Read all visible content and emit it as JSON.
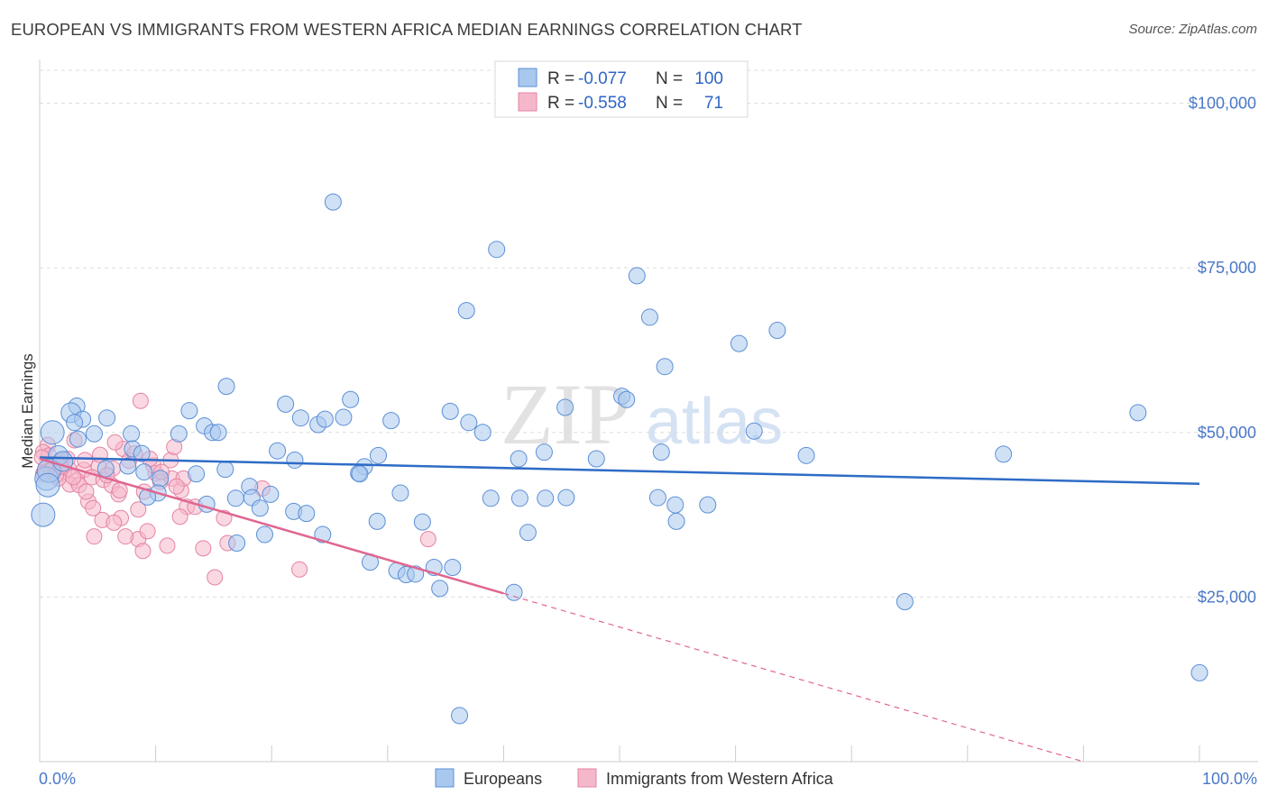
{
  "title": "EUROPEAN VS IMMIGRANTS FROM WESTERN AFRICA MEDIAN EARNINGS CORRELATION CHART",
  "source": "Source: ZipAtlas.com",
  "watermark": {
    "part1": "ZIP",
    "part2": "atlas"
  },
  "colors": {
    "blue_fill": "#a9c8ee",
    "blue_stroke": "#5b8fd6",
    "blue_line": "#2e6cc6",
    "pink_fill": "#f5b8ca",
    "pink_stroke": "#e583a3",
    "pink_line": "#e06690",
    "axis_text": "#4a78c8",
    "grid": "#dddddd"
  },
  "legend": {
    "rows": [
      {
        "r_label": "R =",
        "r_value": "-0.077",
        "n_label": "N =",
        "n_value": "100"
      },
      {
        "r_label": "R =",
        "r_value": "-0.558",
        "n_label": "N =",
        "n_value": "71"
      }
    ]
  },
  "chart_data": {
    "type": "scatter",
    "title": "EUROPEAN VS IMMIGRANTS FROM WESTERN AFRICA MEDIAN EARNINGS CORRELATION CHART",
    "xlabel": "",
    "ylabel": "Median Earnings",
    "xlim": [
      0,
      100
    ],
    "ylim": [
      0,
      105000
    ],
    "x_tick_labels": [
      "0.0%",
      "100.0%"
    ],
    "y_ticks": [
      25000,
      50000,
      75000,
      100000
    ],
    "y_tick_labels": [
      "$25,000",
      "$50,000",
      "$75,000",
      "$100,000"
    ],
    "grid": true,
    "series": [
      {
        "name": "Europeans",
        "r": -0.077,
        "n": 100,
        "trend": {
          "x": [
            0,
            100
          ],
          "y": [
            46200,
            42200
          ],
          "dashed_from": null
        },
        "points": [
          [
            25.3,
            85000
          ],
          [
            39.4,
            77800
          ],
          [
            36.8,
            68500
          ],
          [
            51.5,
            73800
          ],
          [
            52.6,
            67500
          ],
          [
            53.9,
            60000
          ],
          [
            60.3,
            63500
          ],
          [
            63.6,
            65500
          ],
          [
            16.1,
            57000
          ],
          [
            21.2,
            54300
          ],
          [
            26.8,
            55000
          ],
          [
            45.3,
            53800
          ],
          [
            50.2,
            55500
          ],
          [
            35.4,
            53200
          ],
          [
            94.7,
            53000
          ],
          [
            3.2,
            54000
          ],
          [
            2.7,
            53000
          ],
          [
            3.7,
            52000
          ],
          [
            5.8,
            52200
          ],
          [
            12.9,
            53300
          ],
          [
            22.5,
            52200
          ],
          [
            24.0,
            51200
          ],
          [
            24.6,
            52000
          ],
          [
            26.2,
            52300
          ],
          [
            30.3,
            51800
          ],
          [
            37.0,
            51500
          ],
          [
            14.2,
            51000
          ],
          [
            3.0,
            51500
          ],
          [
            1.1,
            50000
          ],
          [
            7.9,
            49800
          ],
          [
            12.0,
            49800
          ],
          [
            14.9,
            50000
          ],
          [
            15.4,
            50000
          ],
          [
            38.2,
            50000
          ],
          [
            61.6,
            50200
          ],
          [
            4.7,
            49800
          ],
          [
            3.3,
            49000
          ],
          [
            8.0,
            47500
          ],
          [
            8.8,
            46800
          ],
          [
            1.6,
            46500
          ],
          [
            20.5,
            47200
          ],
          [
            22.0,
            45800
          ],
          [
            29.2,
            46500
          ],
          [
            41.3,
            46000
          ],
          [
            48.0,
            46000
          ],
          [
            53.6,
            47000
          ],
          [
            66.1,
            46500
          ],
          [
            83.1,
            46700
          ],
          [
            28.0,
            44800
          ],
          [
            27.5,
            43800
          ],
          [
            27.6,
            43700
          ],
          [
            16.0,
            44400
          ],
          [
            7.6,
            44900
          ],
          [
            9.0,
            44000
          ],
          [
            0.6,
            43000
          ],
          [
            10.4,
            43000
          ],
          [
            0.8,
            44200
          ],
          [
            18.1,
            41800
          ],
          [
            10.2,
            40800
          ],
          [
            16.9,
            40000
          ],
          [
            18.3,
            40100
          ],
          [
            9.3,
            40200
          ],
          [
            19.9,
            40600
          ],
          [
            14.4,
            39100
          ],
          [
            31.1,
            40800
          ],
          [
            38.9,
            40000
          ],
          [
            41.4,
            40000
          ],
          [
            43.6,
            40000
          ],
          [
            45.4,
            40100
          ],
          [
            53.3,
            40100
          ],
          [
            57.6,
            39000
          ],
          [
            54.8,
            39000
          ],
          [
            19.0,
            38500
          ],
          [
            21.9,
            38000
          ],
          [
            23.0,
            37700
          ],
          [
            29.1,
            36500
          ],
          [
            33.0,
            36400
          ],
          [
            54.9,
            36500
          ],
          [
            17.0,
            33200
          ],
          [
            19.4,
            34500
          ],
          [
            24.4,
            34500
          ],
          [
            42.1,
            34800
          ],
          [
            28.5,
            30300
          ],
          [
            30.8,
            29000
          ],
          [
            31.6,
            28400
          ],
          [
            32.4,
            28500
          ],
          [
            34.0,
            29500
          ],
          [
            35.6,
            29500
          ],
          [
            34.5,
            26300
          ],
          [
            40.9,
            25700
          ],
          [
            74.6,
            24300
          ],
          [
            100.0,
            13500
          ],
          [
            36.2,
            7000
          ],
          [
            0.3,
            37500
          ],
          [
            0.7,
            42000
          ],
          [
            13.5,
            43700
          ],
          [
            5.7,
            44500
          ],
          [
            2.0,
            45600
          ],
          [
            50.6,
            55000
          ],
          [
            43.5,
            47000
          ]
        ]
      },
      {
        "name": "Immigrants from Western Africa",
        "r": -0.558,
        "n": 71,
        "trend": {
          "x": [
            0,
            90
          ],
          "y": [
            46000,
            0
          ],
          "dashed_from": 40.0
        },
        "points": [
          [
            8.7,
            54800
          ],
          [
            0.7,
            48100
          ],
          [
            3.0,
            48800
          ],
          [
            0.3,
            47000
          ],
          [
            0.8,
            46500
          ],
          [
            1.9,
            45700
          ],
          [
            1.1,
            45100
          ],
          [
            0.5,
            44500
          ],
          [
            1.0,
            44200
          ],
          [
            2.1,
            44000
          ],
          [
            2.5,
            44500
          ],
          [
            0.3,
            43700
          ],
          [
            3.8,
            44300
          ],
          [
            5.1,
            44800
          ],
          [
            5.2,
            46600
          ],
          [
            7.2,
            47500
          ],
          [
            7.7,
            45700
          ],
          [
            11.3,
            45800
          ],
          [
            11.6,
            47800
          ],
          [
            3.2,
            42700
          ],
          [
            4.5,
            43200
          ],
          [
            5.5,
            42800
          ],
          [
            6.3,
            44500
          ],
          [
            6.5,
            48500
          ],
          [
            2.6,
            42100
          ],
          [
            6.2,
            42000
          ],
          [
            6.8,
            40600
          ],
          [
            9.0,
            41000
          ],
          [
            10.0,
            43800
          ],
          [
            10.4,
            42500
          ],
          [
            11.4,
            43000
          ],
          [
            12.2,
            41200
          ],
          [
            12.4,
            43000
          ],
          [
            19.2,
            41500
          ],
          [
            4.2,
            39500
          ],
          [
            4.6,
            38500
          ],
          [
            8.5,
            38300
          ],
          [
            12.7,
            38700
          ],
          [
            5.4,
            36700
          ],
          [
            7.0,
            37000
          ],
          [
            8.5,
            33800
          ],
          [
            9.3,
            35000
          ],
          [
            6.4,
            36300
          ],
          [
            11.0,
            32800
          ],
          [
            12.1,
            37200
          ],
          [
            14.1,
            32400
          ],
          [
            16.2,
            33200
          ],
          [
            4.7,
            34200
          ],
          [
            7.4,
            34200
          ],
          [
            8.9,
            32000
          ],
          [
            15.1,
            28000
          ],
          [
            22.4,
            29200
          ],
          [
            33.5,
            33800
          ],
          [
            2.4,
            46000
          ],
          [
            3.9,
            45800
          ],
          [
            1.6,
            43000
          ],
          [
            3.4,
            42000
          ],
          [
            6.9,
            41200
          ],
          [
            11.8,
            41800
          ],
          [
            15.9,
            37000
          ],
          [
            13.4,
            38700
          ],
          [
            1.4,
            43500
          ],
          [
            2.9,
            43200
          ],
          [
            9.8,
            45000
          ],
          [
            8.2,
            46800
          ],
          [
            10.5,
            44000
          ],
          [
            4.0,
            41000
          ],
          [
            0.2,
            46200
          ],
          [
            1.8,
            44800
          ],
          [
            5.8,
            43500
          ],
          [
            9.5,
            46000
          ]
        ]
      }
    ]
  }
}
